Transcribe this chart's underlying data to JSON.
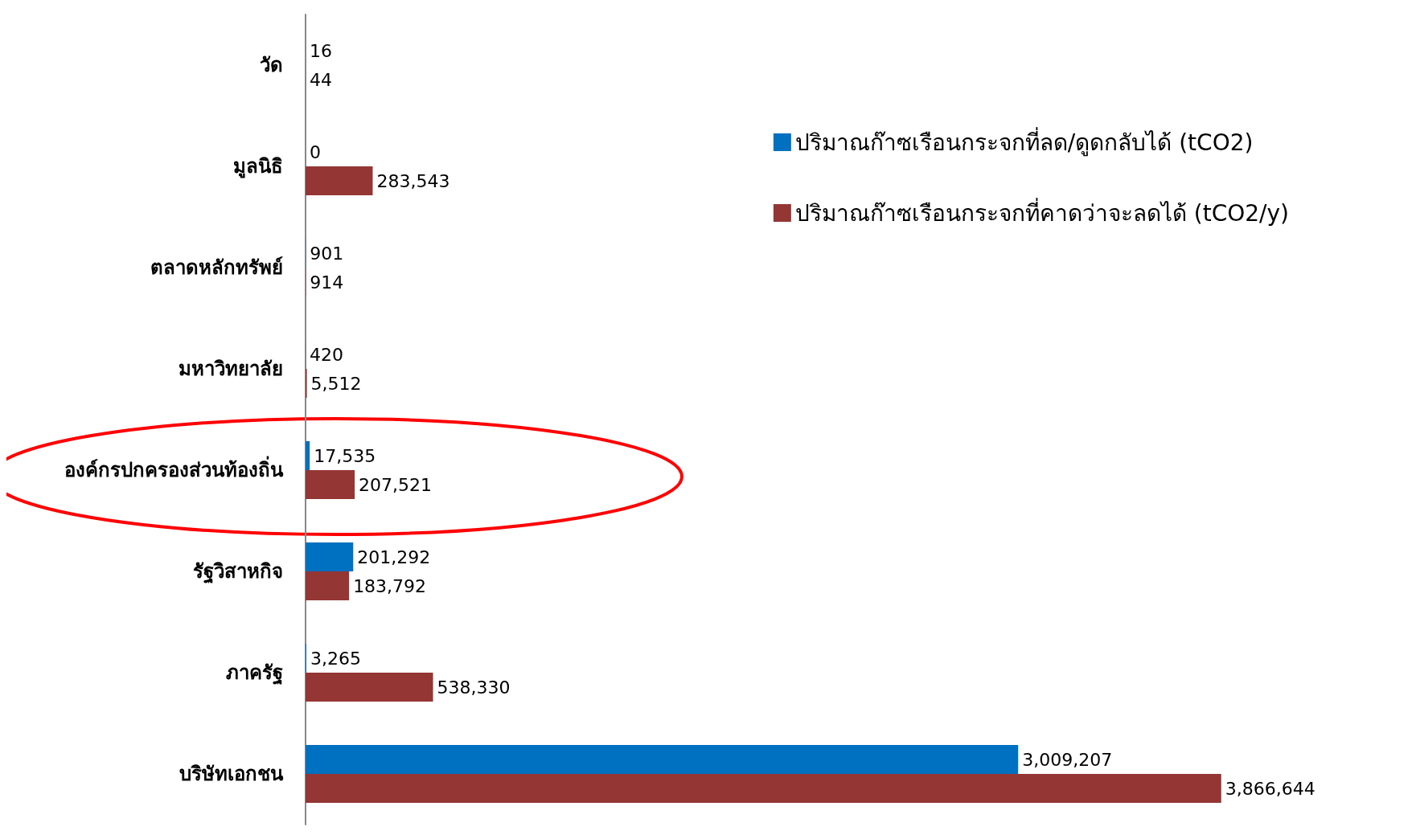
{
  "chart_data": {
    "type": "bar",
    "orientation": "horizontal",
    "legend": "top right",
    "categories": [
      "วัด",
      "มูลนิธิ",
      "ตลาดหลักทรัพย์",
      "มหาวิทยาลัย",
      "องค์กรปกครองส่วนท้องถิ่น",
      "รัฐวิสาหกิจ",
      "ภาครัฐ",
      "บริษัทเอกชน"
    ],
    "series": [
      {
        "name": "ปริมาณก๊าซเรือนกระจกที่ลด/ดูดกลับได้ (tCO2)",
        "color": "#0070c0",
        "values": [
          16,
          0,
          901,
          420,
          17535,
          201292,
          3265,
          3009207
        ],
        "value_labels": [
          "16",
          "0",
          "901",
          "420",
          "17,535",
          "201,292",
          "3,265",
          "3,009,207"
        ]
      },
      {
        "name": "ปริมาณก๊าซเรือนกระจกที่คาดว่าจะลดได้ (tCO2/y)",
        "color": "#943634",
        "values": [
          44,
          283543,
          914,
          5512,
          207521,
          183792,
          538330,
          3866644
        ],
        "value_labels": [
          "44",
          "283,543",
          "914",
          "5,512",
          "207,521",
          "183,792",
          "538,330",
          "3,866,644"
        ]
      }
    ]
  }
}
